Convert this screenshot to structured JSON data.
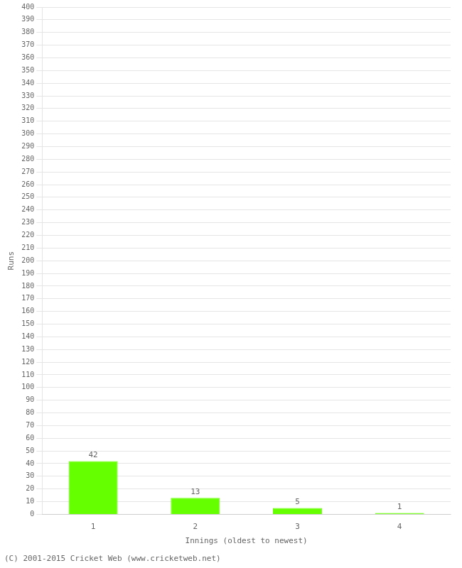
{
  "chart_data": {
    "type": "bar",
    "categories": [
      "1",
      "2",
      "3",
      "4"
    ],
    "values": [
      42,
      13,
      5,
      1
    ],
    "color": "#66ff00",
    "xlabel": "Innings (oldest to newest)",
    "ylabel": "Runs",
    "ylim": [
      0,
      400
    ],
    "yticks": [
      0,
      10,
      20,
      30,
      40,
      50,
      60,
      70,
      80,
      90,
      100,
      110,
      120,
      130,
      140,
      150,
      160,
      170,
      180,
      190,
      200,
      210,
      220,
      230,
      240,
      250,
      260,
      270,
      280,
      290,
      300,
      310,
      320,
      330,
      340,
      350,
      360,
      370,
      380,
      390,
      400
    ],
    "grid": true,
    "data_labels": true,
    "annotations": [
      "(C) 2001-2015 Cricket Web (www.cricketweb.net)"
    ]
  }
}
